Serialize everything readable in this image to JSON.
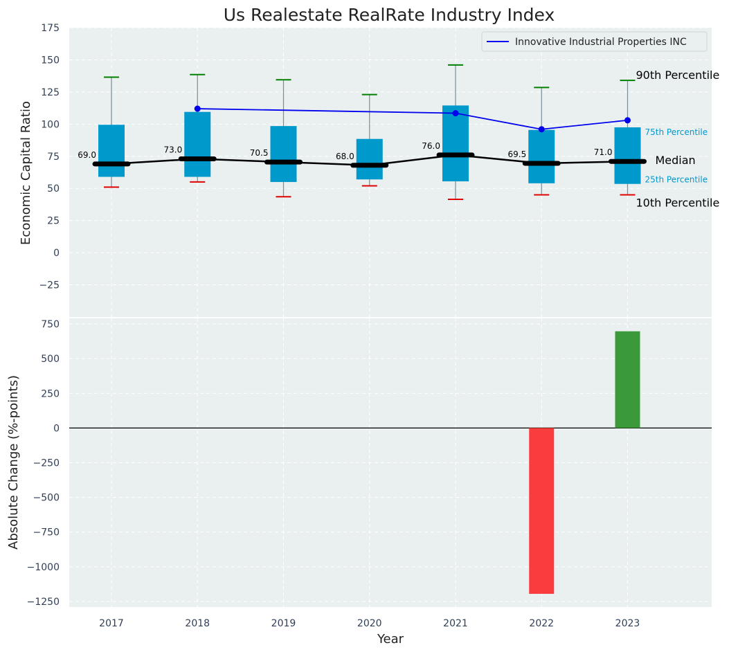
{
  "chart_data": [
    {
      "type": "box",
      "title": "Us Realestate RealRate Industry Index",
      "ylabel": "Economic Capital Ratio",
      "ylim": [
        -50,
        175
      ],
      "yticks": [
        -25,
        0,
        25,
        50,
        75,
        100,
        125,
        150,
        175
      ],
      "categories": [
        "2017",
        "2018",
        "2019",
        "2020",
        "2021",
        "2022",
        "2023"
      ],
      "p10": [
        51,
        55,
        43.5,
        52,
        41.5,
        45,
        45
      ],
      "p25": [
        59,
        59,
        55,
        57,
        55.5,
        54,
        53.5
      ],
      "median": [
        69.0,
        73.0,
        70.5,
        68.0,
        76.0,
        69.5,
        71.0
      ],
      "median_labels": [
        "69.0",
        "73.0",
        "70.5",
        "68.0",
        "76.0",
        "69.5",
        "71.0"
      ],
      "p75": [
        99.5,
        109.5,
        98.5,
        88.5,
        114.5,
        95.5,
        97.5
      ],
      "p90": [
        136.5,
        138.5,
        134.5,
        123,
        146,
        128.5,
        134
      ],
      "series": [
        {
          "name": "Innovative Industrial Properties INC",
          "x": [
            "2018",
            "2021",
            "2022",
            "2023"
          ],
          "values": [
            112,
            108.5,
            96,
            103
          ]
        }
      ],
      "annotations": {
        "p90": "90th Percentile",
        "p75": "75th Percentile",
        "median": "Median",
        "p25": "25th Percentile",
        "p10": "10th Percentile"
      },
      "legend": "top-right",
      "grid": true
    },
    {
      "type": "bar",
      "xlabel": "Year",
      "ylabel": "Absolute Change (%-points)",
      "ylim": [
        -1290,
        790
      ],
      "yticks": [
        -1250,
        -1000,
        -750,
        -500,
        -250,
        0,
        250,
        500,
        750
      ],
      "xticks": [
        "2017",
        "2018",
        "2019",
        "2020",
        "2021",
        "2022",
        "2023"
      ],
      "bars": [
        {
          "x": "2022",
          "value": -1195,
          "color": "#f93d3d"
        },
        {
          "x": "2023",
          "value": 697,
          "color": "#3a9a3a"
        }
      ],
      "grid": true
    }
  ],
  "colors": {
    "background": "#eaeff0",
    "box": "#0099cc",
    "median": "#000000",
    "p90_cap": "#008000",
    "p10_cap": "#e00000",
    "series_line": "#0000ee",
    "annot_blue": "#0099cc"
  }
}
